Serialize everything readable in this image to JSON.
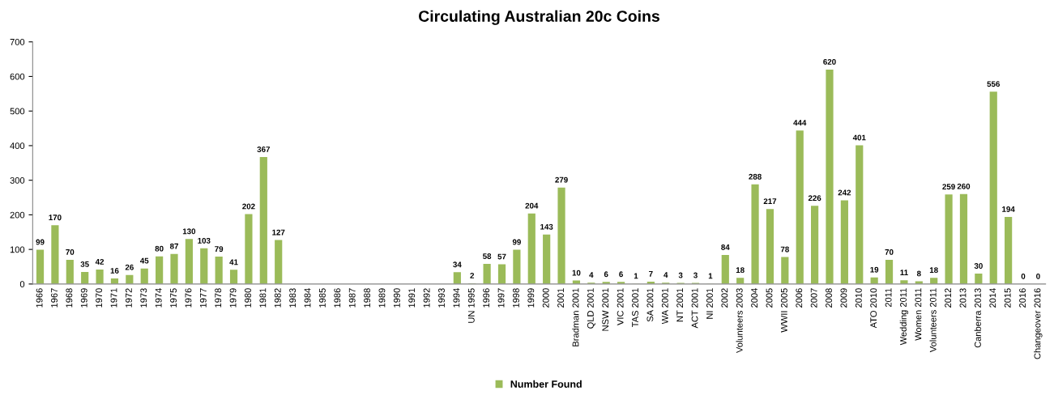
{
  "chart_data": {
    "type": "bar",
    "title": "Circulating Australian 20c Coins",
    "categories": [
      "1966",
      "1967",
      "1968",
      "1969",
      "1970",
      "1971",
      "1972",
      "1973",
      "1974",
      "1975",
      "1976",
      "1977",
      "1978",
      "1979",
      "1980",
      "1981",
      "1982",
      "1983",
      "1984",
      "1985",
      "1986",
      "1987",
      "1988",
      "1989",
      "1990",
      "1991",
      "1992",
      "1993",
      "1994",
      "UN 1995",
      "1996",
      "1997",
      "1998",
      "1999",
      "2000",
      "2001",
      "Bradman 2001",
      "QLD 2001",
      "NSW 2001",
      "VIC 2001",
      "TAS 2001",
      "SA 2001",
      "WA 2001",
      "NT 2001",
      "ACT 2001",
      "NI 2001",
      "2002",
      "Volunteers 2003",
      "2004",
      "2005",
      "WWII 2005",
      "2006",
      "2007",
      "2008",
      "2009",
      "2010",
      "ATO 2010",
      "2011",
      "Wedding 2011",
      "Women 2011",
      "Volunteers 2011",
      "2012",
      "2013",
      "Canberra 2013",
      "2014",
      "2015",
      "2016",
      "Changeover 2016"
    ],
    "series": [
      {
        "name": "Number Found",
        "color": "#9bbb59",
        "values": [
          99,
          170,
          70,
          35,
          42,
          16,
          26,
          45,
          80,
          87,
          130,
          103,
          79,
          41,
          202,
          367,
          127,
          null,
          null,
          null,
          null,
          null,
          null,
          null,
          null,
          null,
          null,
          null,
          34,
          2,
          58,
          57,
          99,
          204,
          143,
          279,
          10,
          4,
          6,
          6,
          1,
          7,
          4,
          3,
          3,
          1,
          84,
          18,
          288,
          217,
          78,
          444,
          226,
          620,
          242,
          401,
          19,
          70,
          11,
          8,
          18,
          259,
          260,
          30,
          556,
          194,
          0,
          0
        ]
      }
    ],
    "ylim": [
      0,
      700
    ],
    "yticks": [
      0,
      100,
      200,
      300,
      400,
      500,
      600,
      700
    ],
    "grid": false,
    "legend": "bottom",
    "data_labels": true
  }
}
